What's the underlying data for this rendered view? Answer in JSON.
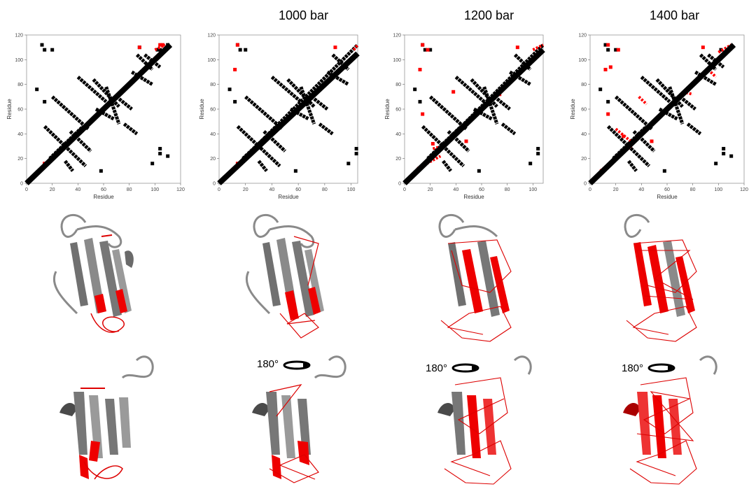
{
  "titles": [
    "",
    "1000 bar",
    "1200 bar",
    "1400 bar"
  ],
  "rotation_label": "180°",
  "chart_data": [
    {
      "type": "scatter",
      "title": "",
      "xlabel": "Residue",
      "ylabel": "Residue",
      "xlim": [
        0,
        120
      ],
      "ylim": [
        0,
        120
      ],
      "xticks": [
        0,
        20,
        40,
        60,
        80,
        100,
        120
      ],
      "yticks": [
        0,
        20,
        40,
        60,
        80,
        100,
        120
      ],
      "series": [
        {
          "color": "#000000",
          "segments": [
            [
              0,
              0,
              112,
              112
            ],
            [
              14,
              46,
              46,
              14
            ],
            [
              18,
              20,
              44,
              46
            ],
            [
              20,
              70,
              48,
              44
            ],
            [
              40,
              86,
              62,
              66
            ],
            [
              52,
              84,
              72,
              62
            ],
            [
              62,
              78,
              72,
              48
            ],
            [
              82,
              90,
              98,
              80
            ],
            [
              86,
              104,
              98,
              92
            ],
            [
              92,
              104,
              104,
              94
            ],
            [
              54,
              60,
              68,
              52
            ],
            [
              34,
              42,
              50,
              26
            ],
            [
              70,
              70,
              82,
              60
            ],
            [
              76,
              48,
              86,
              40
            ],
            [
              30,
              18,
              36,
              10
            ]
          ],
          "points": [
            [
              12,
              112
            ],
            [
              14,
              108
            ],
            [
              20,
              108
            ],
            [
              14,
              66
            ],
            [
              8,
              76
            ],
            [
              102,
              108
            ],
            [
              104,
              108
            ],
            [
              110,
              112
            ],
            [
              58,
              10
            ],
            [
              98,
              16
            ],
            [
              104,
              24
            ],
            [
              110,
              22
            ],
            [
              104,
              28
            ],
            [
              88,
              110
            ]
          ]
        },
        {
          "color": "#ff0000",
          "segments": [
            [
              100,
              108,
              108,
              112
            ]
          ],
          "points": [
            [
              88,
              110
            ],
            [
              14,
              16
            ],
            [
              104,
              112
            ],
            [
              106,
              112
            ]
          ]
        }
      ]
    },
    {
      "type": "scatter",
      "title": "1000 bar",
      "xlabel": "Residue",
      "ylabel": "Residue",
      "xlim": [
        0,
        105
      ],
      "ylim": [
        0,
        120
      ],
      "xticks": [
        0,
        20,
        40,
        60,
        80,
        100
      ],
      "yticks": [
        0,
        20,
        40,
        60,
        80,
        100,
        120
      ],
      "series": [
        {
          "color": "#000000",
          "segments": [
            [
              0,
              0,
              105,
              112
            ],
            [
              14,
              46,
              46,
              14
            ],
            [
              18,
              20,
              44,
              46
            ],
            [
              20,
              70,
              48,
              44
            ],
            [
              40,
              86,
              62,
              66
            ],
            [
              52,
              84,
              72,
              62
            ],
            [
              62,
              78,
              72,
              48
            ],
            [
              82,
              90,
              98,
              80
            ],
            [
              86,
              104,
              98,
              92
            ],
            [
              54,
              60,
              68,
              52
            ],
            [
              34,
              42,
              50,
              26
            ],
            [
              70,
              70,
              82,
              60
            ],
            [
              76,
              48,
              86,
              40
            ],
            [
              30,
              18,
              36,
              10
            ]
          ],
          "points": [
            [
              14,
              112
            ],
            [
              16,
              108
            ],
            [
              20,
              108
            ],
            [
              12,
              66
            ],
            [
              8,
              76
            ],
            [
              58,
              10
            ],
            [
              98,
              16
            ],
            [
              104,
              24
            ],
            [
              104,
              28
            ]
          ]
        },
        {
          "color": "#ff0000",
          "segments": [
            [
              102,
              108,
              105,
              112
            ]
          ],
          "points": [
            [
              88,
              110
            ],
            [
              14,
              16
            ],
            [
              12,
              92
            ],
            [
              14,
              112
            ]
          ]
        }
      ]
    },
    {
      "type": "scatter",
      "title": "1200 bar",
      "xlabel": "Residue",
      "ylabel": "Residue",
      "xlim": [
        0,
        108
      ],
      "ylim": [
        0,
        120
      ],
      "xticks": [
        0,
        20,
        40,
        60,
        80,
        100
      ],
      "yticks": [
        0,
        20,
        40,
        60,
        80,
        100,
        120
      ],
      "series": [
        {
          "color": "#000000",
          "segments": [
            [
              0,
              0,
              108,
              112
            ],
            [
              14,
              46,
              46,
              14
            ],
            [
              18,
              20,
              44,
              46
            ],
            [
              20,
              70,
              48,
              44
            ],
            [
              40,
              86,
              62,
              66
            ],
            [
              52,
              84,
              72,
              62
            ],
            [
              62,
              78,
              72,
              48
            ],
            [
              82,
              90,
              98,
              80
            ],
            [
              86,
              104,
              98,
              92
            ],
            [
              54,
              60,
              68,
              52
            ],
            [
              34,
              42,
              50,
              26
            ],
            [
              70,
              70,
              82,
              60
            ],
            [
              76,
              48,
              86,
              40
            ],
            [
              30,
              18,
              36,
              10
            ]
          ],
          "points": [
            [
              14,
              112
            ],
            [
              16,
              108
            ],
            [
              20,
              108
            ],
            [
              12,
              66
            ],
            [
              8,
              76
            ],
            [
              58,
              10
            ],
            [
              98,
              16
            ],
            [
              104,
              24
            ],
            [
              104,
              28
            ]
          ]
        },
        {
          "color": "#ff0000",
          "segments": [
            [
              100,
              108,
              108,
              112
            ],
            [
              10,
              12,
              28,
              22
            ],
            [
              22,
              28,
              30,
              30
            ]
          ],
          "points": [
            [
              14,
              112
            ],
            [
              18,
              108
            ],
            [
              12,
              92
            ],
            [
              14,
              56
            ],
            [
              38,
              74
            ],
            [
              74,
              72
            ],
            [
              88,
              110
            ],
            [
              48,
              34
            ],
            [
              22,
              32
            ]
          ]
        }
      ]
    },
    {
      "type": "scatter",
      "title": "1400 bar",
      "xlabel": "Residue",
      "ylabel": "Residue",
      "xlim": [
        0,
        120
      ],
      "ylim": [
        0,
        120
      ],
      "xticks": [
        0,
        20,
        40,
        60,
        80,
        100,
        120
      ],
      "yticks": [
        0,
        20,
        40,
        60,
        80,
        100,
        120
      ],
      "series": [
        {
          "color": "#000000",
          "segments": [
            [
              0,
              0,
              112,
              112
            ],
            [
              14,
              46,
              46,
              14
            ],
            [
              18,
              20,
              44,
              46
            ],
            [
              20,
              70,
              48,
              44
            ],
            [
              40,
              86,
              62,
              66
            ],
            [
              52,
              84,
              72,
              62
            ],
            [
              62,
              78,
              72,
              48
            ],
            [
              82,
              90,
              98,
              80
            ],
            [
              86,
              104,
              98,
              92
            ],
            [
              92,
              104,
              104,
              94
            ],
            [
              54,
              60,
              68,
              52
            ],
            [
              34,
              42,
              50,
              26
            ],
            [
              70,
              70,
              82,
              60
            ],
            [
              76,
              48,
              86,
              40
            ],
            [
              30,
              18,
              36,
              10
            ]
          ],
          "points": [
            [
              12,
              112
            ],
            [
              14,
              108
            ],
            [
              20,
              108
            ],
            [
              14,
              66
            ],
            [
              8,
              76
            ],
            [
              102,
              108
            ],
            [
              58,
              10
            ],
            [
              98,
              16
            ],
            [
              104,
              24
            ],
            [
              110,
              22
            ],
            [
              104,
              28
            ]
          ]
        },
        {
          "color": "#ff0000",
          "segments": [
            [
              100,
              106,
              110,
              112
            ],
            [
              8,
              10,
              32,
              30
            ],
            [
              20,
              44,
              34,
              32
            ],
            [
              38,
              70,
              44,
              64
            ],
            [
              72,
              74,
              80,
              72
            ],
            [
              94,
              90,
              98,
              86
            ]
          ],
          "points": [
            [
              14,
              112
            ],
            [
              22,
              108
            ],
            [
              12,
              92
            ],
            [
              16,
              94
            ],
            [
              14,
              56
            ],
            [
              88,
              110
            ],
            [
              48,
              34
            ],
            [
              26,
              38
            ]
          ]
        }
      ]
    }
  ],
  "colors": {
    "contact": "#000000",
    "perturbed": "#ff0000",
    "ribbon": "#8a8a8a",
    "ribbon_dark": "#4a4a4a"
  }
}
